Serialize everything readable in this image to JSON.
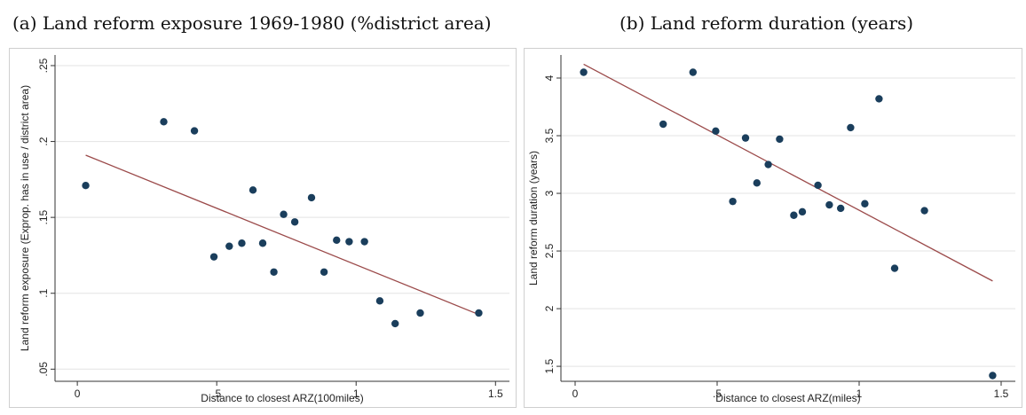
{
  "chart_data": [
    {
      "type": "scatter",
      "title": "(a) Land reform exposure 1969-1980 (%district area)",
      "xlabel": "Distance to closest ARZ(100miles)",
      "ylabel": "Land reform exposure (Exprop. has in use / district area)",
      "xlim": [
        -0.08,
        1.55
      ],
      "ylim": [
        0.042,
        0.257
      ],
      "xticks": [
        0,
        0.5,
        1,
        1.5
      ],
      "xtick_labels": [
        "0",
        ".5",
        "1",
        "1.5"
      ],
      "yticks": [
        0.05,
        0.1,
        0.15,
        0.2,
        0.25
      ],
      "ytick_labels": [
        ".05",
        ".1",
        ".15",
        ".2",
        ".25"
      ],
      "grid": "horizontal",
      "colors": {
        "points": "#1a3e5c",
        "fit": "#9b4a4a",
        "grid": "#e3e3e3"
      },
      "points": [
        [
          0.03,
          0.171
        ],
        [
          0.31,
          0.213
        ],
        [
          0.42,
          0.207
        ],
        [
          0.49,
          0.124
        ],
        [
          0.545,
          0.131
        ],
        [
          0.59,
          0.133
        ],
        [
          0.63,
          0.168
        ],
        [
          0.665,
          0.133
        ],
        [
          0.705,
          0.114
        ],
        [
          0.74,
          0.152
        ],
        [
          0.78,
          0.147
        ],
        [
          0.84,
          0.163
        ],
        [
          0.93,
          0.135
        ],
        [
          0.975,
          0.134
        ],
        [
          0.885,
          0.114
        ],
        [
          1.03,
          0.134
        ],
        [
          1.085,
          0.095
        ],
        [
          1.14,
          0.08
        ],
        [
          1.23,
          0.087
        ],
        [
          1.44,
          0.087
        ]
      ],
      "fit_line": [
        [
          0.03,
          0.191
        ],
        [
          1.44,
          0.086
        ]
      ]
    },
    {
      "type": "scatter",
      "title": "(b) Land reform duration (years)",
      "xlabel": "Distance to closest ARZ(miles)",
      "ylabel": "Land reform duration (years)",
      "xlim": [
        -0.05,
        1.55
      ],
      "ylim": [
        1.37,
        4.2
      ],
      "xticks": [
        0,
        0.5,
        1,
        1.5
      ],
      "xtick_labels": [
        "0",
        ".5",
        "1",
        "1.5"
      ],
      "yticks": [
        1.5,
        2,
        2.5,
        3,
        3.5,
        4
      ],
      "ytick_labels": [
        "1.5",
        "2",
        "2.5",
        "3",
        "3.5",
        "4"
      ],
      "grid": "horizontal",
      "colors": {
        "points": "#1a3e5c",
        "fit": "#9b4a4a",
        "grid": "#e3e3e3"
      },
      "points": [
        [
          0.03,
          4.05
        ],
        [
          0.31,
          3.6
        ],
        [
          0.415,
          4.05
        ],
        [
          0.495,
          3.54
        ],
        [
          0.555,
          2.93
        ],
        [
          0.6,
          3.48
        ],
        [
          0.64,
          3.09
        ],
        [
          0.68,
          3.25
        ],
        [
          0.72,
          3.47
        ],
        [
          0.77,
          2.81
        ],
        [
          0.8,
          2.84
        ],
        [
          0.855,
          3.07
        ],
        [
          0.895,
          2.9
        ],
        [
          0.935,
          2.87
        ],
        [
          0.97,
          3.57
        ],
        [
          1.02,
          2.91
        ],
        [
          1.07,
          3.82
        ],
        [
          1.125,
          2.35
        ],
        [
          1.23,
          2.85
        ],
        [
          1.47,
          1.42
        ]
      ],
      "fit_line": [
        [
          0.03,
          4.12
        ],
        [
          1.47,
          2.24
        ]
      ]
    }
  ]
}
